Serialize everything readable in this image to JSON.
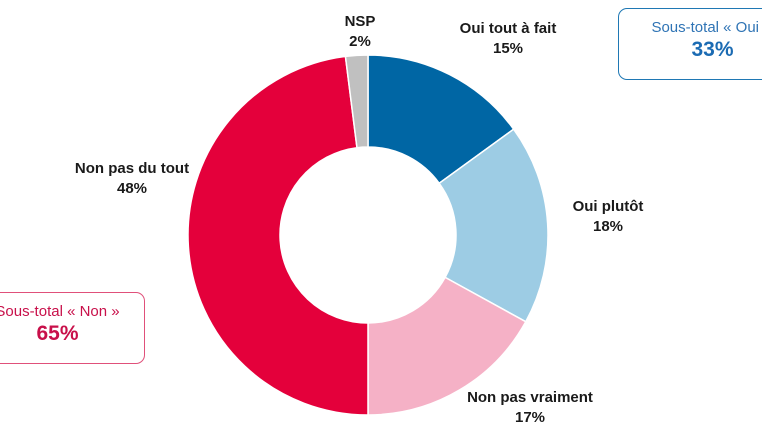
{
  "chart_data": {
    "type": "pie",
    "donut": true,
    "categories": [
      "Oui tout à fait",
      "Oui plutôt",
      "Non pas vraiment",
      "Non pas du tout",
      "NSP"
    ],
    "values": [
      15,
      18,
      17,
      48,
      2
    ],
    "value_labels": [
      "15%",
      "18%",
      "17%",
      "48%",
      "2%"
    ],
    "colors": [
      "#0066a4",
      "#9dcce4",
      "#f5b1c6",
      "#e4003b",
      "#c0c0c0"
    ],
    "title": "",
    "legend": "none"
  },
  "subtotals": {
    "oui": {
      "caption": "Sous-total « Oui »",
      "value": "33%",
      "color": "#1b6bb3"
    },
    "non": {
      "caption": "Sous-total « Non »",
      "value": "65%",
      "color": "#c8104a"
    }
  }
}
